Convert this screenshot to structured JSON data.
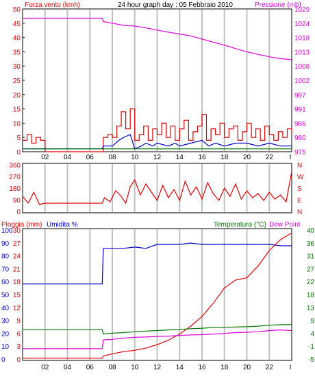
{
  "header": {
    "wind_label": "Forza vento (kmh)",
    "title": "24 hour graph day : 05 Febbraio 2010",
    "pressure_label": "Pressione (mb)"
  },
  "bottom_header": {
    "rain_label": "Pioggia (mm)",
    "humidity_label": "Umidita %",
    "temp_label": "Temperatura (°C)",
    "dew_label": "Dew Point"
  },
  "colors": {
    "red": "#e00000",
    "blue": "#0000cc",
    "green": "#007700",
    "magenta": "#dd00dd",
    "gray_line": "#c0c0c0",
    "frame": "#000000"
  },
  "chart_data": [
    {
      "type": "line",
      "name": "wind-pressure",
      "x_ticks": [
        "02",
        "04",
        "06",
        "08",
        "10",
        "12",
        "14",
        "16",
        "18",
        "20",
        "22",
        "I"
      ],
      "y_left_ticks": [
        "0",
        "5",
        "10",
        "15",
        "20",
        "25",
        "30",
        "35",
        "40",
        "45",
        "50"
      ],
      "y_left_range": [
        0,
        50
      ],
      "y_right_ticks": [
        "975",
        "980",
        "986",
        "991",
        "997",
        "1002",
        "1008",
        "1013",
        "1018",
        "1024",
        "1029"
      ],
      "y_right_range": [
        975,
        1029
      ],
      "pressure_points": [
        [
          0,
          1025.5
        ],
        [
          7.1,
          1025.5
        ],
        [
          7.2,
          1024.2
        ],
        [
          8,
          1023.6
        ],
        [
          9,
          1022.8
        ],
        [
          10,
          1022.5
        ],
        [
          11,
          1021.8
        ],
        [
          12,
          1021.0
        ],
        [
          13,
          1020.2
        ],
        [
          14,
          1019.5
        ],
        [
          15,
          1018.8
        ],
        [
          16,
          1017.6
        ],
        [
          17,
          1016.4
        ],
        [
          18,
          1015.3
        ],
        [
          19,
          1014.0
        ],
        [
          20,
          1012.8
        ],
        [
          21,
          1011.8
        ],
        [
          22,
          1010.9
        ],
        [
          23,
          1010.2
        ],
        [
          24,
          1009.8
        ]
      ],
      "gust_points": [
        [
          0,
          4
        ],
        [
          0.4,
          6
        ],
        [
          0.8,
          3
        ],
        [
          1.2,
          5
        ],
        [
          1.6,
          4
        ],
        [
          2.0,
          0
        ],
        [
          7.1,
          0
        ],
        [
          7.2,
          5
        ],
        [
          7.6,
          6
        ],
        [
          8.0,
          5
        ],
        [
          8.4,
          9
        ],
        [
          8.8,
          14
        ],
        [
          9.2,
          8
        ],
        [
          9.6,
          15
        ],
        [
          10.0,
          4
        ],
        [
          10.4,
          6
        ],
        [
          10.8,
          9
        ],
        [
          11.2,
          4
        ],
        [
          11.6,
          8
        ],
        [
          12.0,
          6
        ],
        [
          12.4,
          10
        ],
        [
          12.8,
          5
        ],
        [
          13.2,
          9
        ],
        [
          13.6,
          4
        ],
        [
          14.0,
          8
        ],
        [
          14.4,
          11
        ],
        [
          14.8,
          4
        ],
        [
          15.2,
          7
        ],
        [
          15.6,
          9
        ],
        [
          16.0,
          13
        ],
        [
          16.4,
          4
        ],
        [
          16.8,
          8
        ],
        [
          17.2,
          6
        ],
        [
          17.6,
          10
        ],
        [
          18.0,
          5
        ],
        [
          18.4,
          8
        ],
        [
          18.8,
          9
        ],
        [
          19.2,
          4
        ],
        [
          19.6,
          7
        ],
        [
          20.0,
          10
        ],
        [
          20.4,
          5
        ],
        [
          20.8,
          8
        ],
        [
          21.2,
          4
        ],
        [
          21.6,
          9
        ],
        [
          22.0,
          6
        ],
        [
          22.4,
          4
        ],
        [
          22.8,
          7
        ],
        [
          23.2,
          5
        ],
        [
          23.6,
          8
        ],
        [
          24,
          6
        ]
      ],
      "speed_points": [
        [
          0,
          1
        ],
        [
          2.0,
          1
        ],
        [
          7.1,
          1
        ],
        [
          7.2,
          2
        ],
        [
          8.0,
          2
        ],
        [
          8.6,
          4
        ],
        [
          9.0,
          5
        ],
        [
          9.6,
          6
        ],
        [
          10.0,
          1
        ],
        [
          10.6,
          2
        ],
        [
          11.0,
          3
        ],
        [
          11.6,
          2
        ],
        [
          12.0,
          3
        ],
        [
          13.0,
          2
        ],
        [
          13.6,
          3
        ],
        [
          14.0,
          2
        ],
        [
          15.0,
          3
        ],
        [
          16.0,
          4
        ],
        [
          16.6,
          2
        ],
        [
          17.2,
          3
        ],
        [
          18.0,
          2
        ],
        [
          19.0,
          3
        ],
        [
          20.0,
          3
        ],
        [
          21.0,
          2
        ],
        [
          22.0,
          3
        ],
        [
          23.0,
          2
        ],
        [
          24,
          2
        ]
      ],
      "avg_points": [
        [
          0,
          1
        ],
        [
          7.1,
          1
        ],
        [
          7.2,
          1
        ],
        [
          10.0,
          1
        ],
        [
          12.0,
          1
        ],
        [
          14.0,
          1
        ],
        [
          16.0,
          1
        ],
        [
          18.0,
          1
        ],
        [
          20.0,
          1
        ],
        [
          22.0,
          1
        ],
        [
          24,
          1
        ]
      ]
    },
    {
      "type": "line",
      "name": "wind-direction",
      "y_left_ticks": [
        "0",
        "90",
        "180",
        "270",
        "360"
      ],
      "y_left_range": [
        0,
        360
      ],
      "y_right_ticks": [
        "N",
        "E",
        "S",
        "W",
        "N"
      ],
      "points": [
        [
          0,
          120
        ],
        [
          0.5,
          70
        ],
        [
          1.0,
          150
        ],
        [
          1.5,
          60
        ],
        [
          2.0,
          70
        ],
        [
          7.1,
          70
        ],
        [
          7.3,
          110
        ],
        [
          7.8,
          80
        ],
        [
          8.3,
          160
        ],
        [
          8.8,
          120
        ],
        [
          9.2,
          70
        ],
        [
          9.6,
          190
        ],
        [
          10.0,
          240
        ],
        [
          10.5,
          130
        ],
        [
          11.0,
          210
        ],
        [
          11.5,
          150
        ],
        [
          12.0,
          90
        ],
        [
          12.5,
          200
        ],
        [
          13.0,
          110
        ],
        [
          13.5,
          170
        ],
        [
          14.0,
          90
        ],
        [
          14.5,
          230
        ],
        [
          15.0,
          130
        ],
        [
          15.5,
          190
        ],
        [
          16.0,
          100
        ],
        [
          16.5,
          220
        ],
        [
          17.0,
          140
        ],
        [
          17.5,
          90
        ],
        [
          18.0,
          180
        ],
        [
          18.5,
          120
        ],
        [
          19.0,
          210
        ],
        [
          19.5,
          100
        ],
        [
          20.0,
          160
        ],
        [
          20.5,
          110
        ],
        [
          21.0,
          140
        ],
        [
          21.5,
          90
        ],
        [
          22.0,
          150
        ],
        [
          22.5,
          100
        ],
        [
          23.0,
          130
        ],
        [
          23.5,
          80
        ],
        [
          24,
          300
        ]
      ]
    },
    {
      "type": "line",
      "name": "rain-humidity-temp",
      "y_left_humidity_ticks": [
        "0",
        "10",
        "20",
        "30",
        "40",
        "50",
        "60",
        "70",
        "80",
        "90",
        "100"
      ],
      "y_left_rain_ticks": [
        "0",
        "3",
        "6",
        "9",
        "12",
        "15",
        "18",
        "21",
        "24",
        "27",
        "30"
      ],
      "y_right_ticks": [
        "-5",
        "-1",
        "4",
        "9",
        "13",
        "18",
        "22",
        "27",
        "31",
        "36",
        "40"
      ],
      "y_right_range": [
        -5,
        40
      ],
      "humidity_points": [
        [
          0,
          58
        ],
        [
          7.1,
          58
        ],
        [
          7.2,
          85
        ],
        [
          8,
          85
        ],
        [
          9,
          85
        ],
        [
          10,
          86
        ],
        [
          11,
          85
        ],
        [
          12,
          88
        ],
        [
          13,
          88
        ],
        [
          14,
          88
        ],
        [
          15,
          89
        ],
        [
          16,
          88
        ],
        [
          17,
          88
        ],
        [
          18,
          88
        ],
        [
          19,
          88
        ],
        [
          20,
          88
        ],
        [
          21,
          88
        ],
        [
          22,
          88
        ],
        [
          23,
          87
        ],
        [
          24,
          87
        ]
      ],
      "rain_points": [
        [
          0,
          0.5
        ],
        [
          7.1,
          0.5
        ],
        [
          7.2,
          1.0
        ],
        [
          8,
          1.5
        ],
        [
          9,
          2.0
        ],
        [
          10,
          2.3
        ],
        [
          11,
          2.8
        ],
        [
          12,
          3.6
        ],
        [
          13,
          4.6
        ],
        [
          14,
          6.0
        ],
        [
          15,
          7.8
        ],
        [
          16,
          10.0
        ],
        [
          17,
          13.0
        ],
        [
          18,
          16.5
        ],
        [
          19,
          18.3
        ],
        [
          20,
          18.8
        ],
        [
          21,
          21.5
        ],
        [
          22,
          25.0
        ],
        [
          23,
          27.5
        ],
        [
          24,
          29.0
        ]
      ],
      "temp_points": [
        [
          0,
          5.5
        ],
        [
          7.1,
          5.5
        ],
        [
          7.2,
          4.0
        ],
        [
          8,
          4.3
        ],
        [
          9,
          4.5
        ],
        [
          10,
          4.8
        ],
        [
          11,
          5.0
        ],
        [
          12,
          5.2
        ],
        [
          13,
          5.4
        ],
        [
          14,
          5.6
        ],
        [
          15,
          5.8
        ],
        [
          16,
          6.0
        ],
        [
          17,
          6.2
        ],
        [
          18,
          6.3
        ],
        [
          19,
          6.4
        ],
        [
          20,
          6.5
        ],
        [
          21,
          6.7
        ],
        [
          22,
          7.0
        ],
        [
          23,
          7.2
        ],
        [
          24,
          7.2
        ]
      ],
      "dew_points": [
        [
          0,
          -1
        ],
        [
          7.1,
          -1
        ],
        [
          7.2,
          2.0
        ],
        [
          8,
          2.2
        ],
        [
          9,
          2.6
        ],
        [
          10,
          2.9
        ],
        [
          11,
          3.0
        ],
        [
          12,
          3.2
        ],
        [
          13,
          3.3
        ],
        [
          14,
          3.5
        ],
        [
          15,
          3.7
        ],
        [
          16,
          3.8
        ],
        [
          17,
          4.0
        ],
        [
          18,
          4.2
        ],
        [
          19,
          4.5
        ],
        [
          20,
          4.6
        ],
        [
          21,
          4.8
        ],
        [
          22,
          5.2
        ],
        [
          23,
          5.4
        ],
        [
          24,
          5.2
        ]
      ]
    }
  ]
}
